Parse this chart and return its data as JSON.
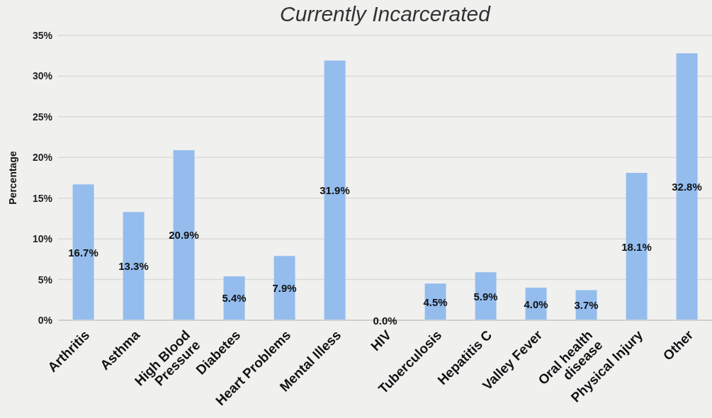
{
  "chart_data": {
    "type": "bar",
    "title": "Currently Incarcerated",
    "ylabel": "Percentage",
    "categories": [
      "Arthritis",
      "Asthma",
      "High Blood\nPressure",
      "Diabetes",
      "Heart Problems",
      "Mental Illess",
      "HIV",
      "Tuberculosis",
      "Hepatitis C",
      "Valley Fever",
      "Oral health\ndisease",
      "Physical Injury",
      "Other"
    ],
    "values": [
      16.7,
      13.3,
      20.9,
      5.4,
      7.9,
      31.9,
      0.0,
      4.5,
      5.9,
      4.0,
      3.7,
      18.1,
      32.8
    ],
    "value_labels": [
      "16.7%",
      "13.3%",
      "20.9%",
      "5.4%",
      "7.9%",
      "31.9%",
      "0.0%",
      "4.5%",
      "5.9%",
      "4.0%",
      "3.7%",
      "18.1%",
      "32.8%"
    ],
    "color": "#94bdee",
    "ylim": [
      0,
      35
    ],
    "yticks": [
      {
        "value": 0,
        "label": "0%"
      },
      {
        "value": 5,
        "label": "5%"
      },
      {
        "value": 10,
        "label": "10%"
      },
      {
        "value": 15,
        "label": "15%"
      },
      {
        "value": 20,
        "label": "20%"
      },
      {
        "value": 25,
        "label": "25%"
      },
      {
        "value": 30,
        "label": "30%"
      },
      {
        "value": 35,
        "label": "35%"
      }
    ],
    "grid": "y"
  }
}
